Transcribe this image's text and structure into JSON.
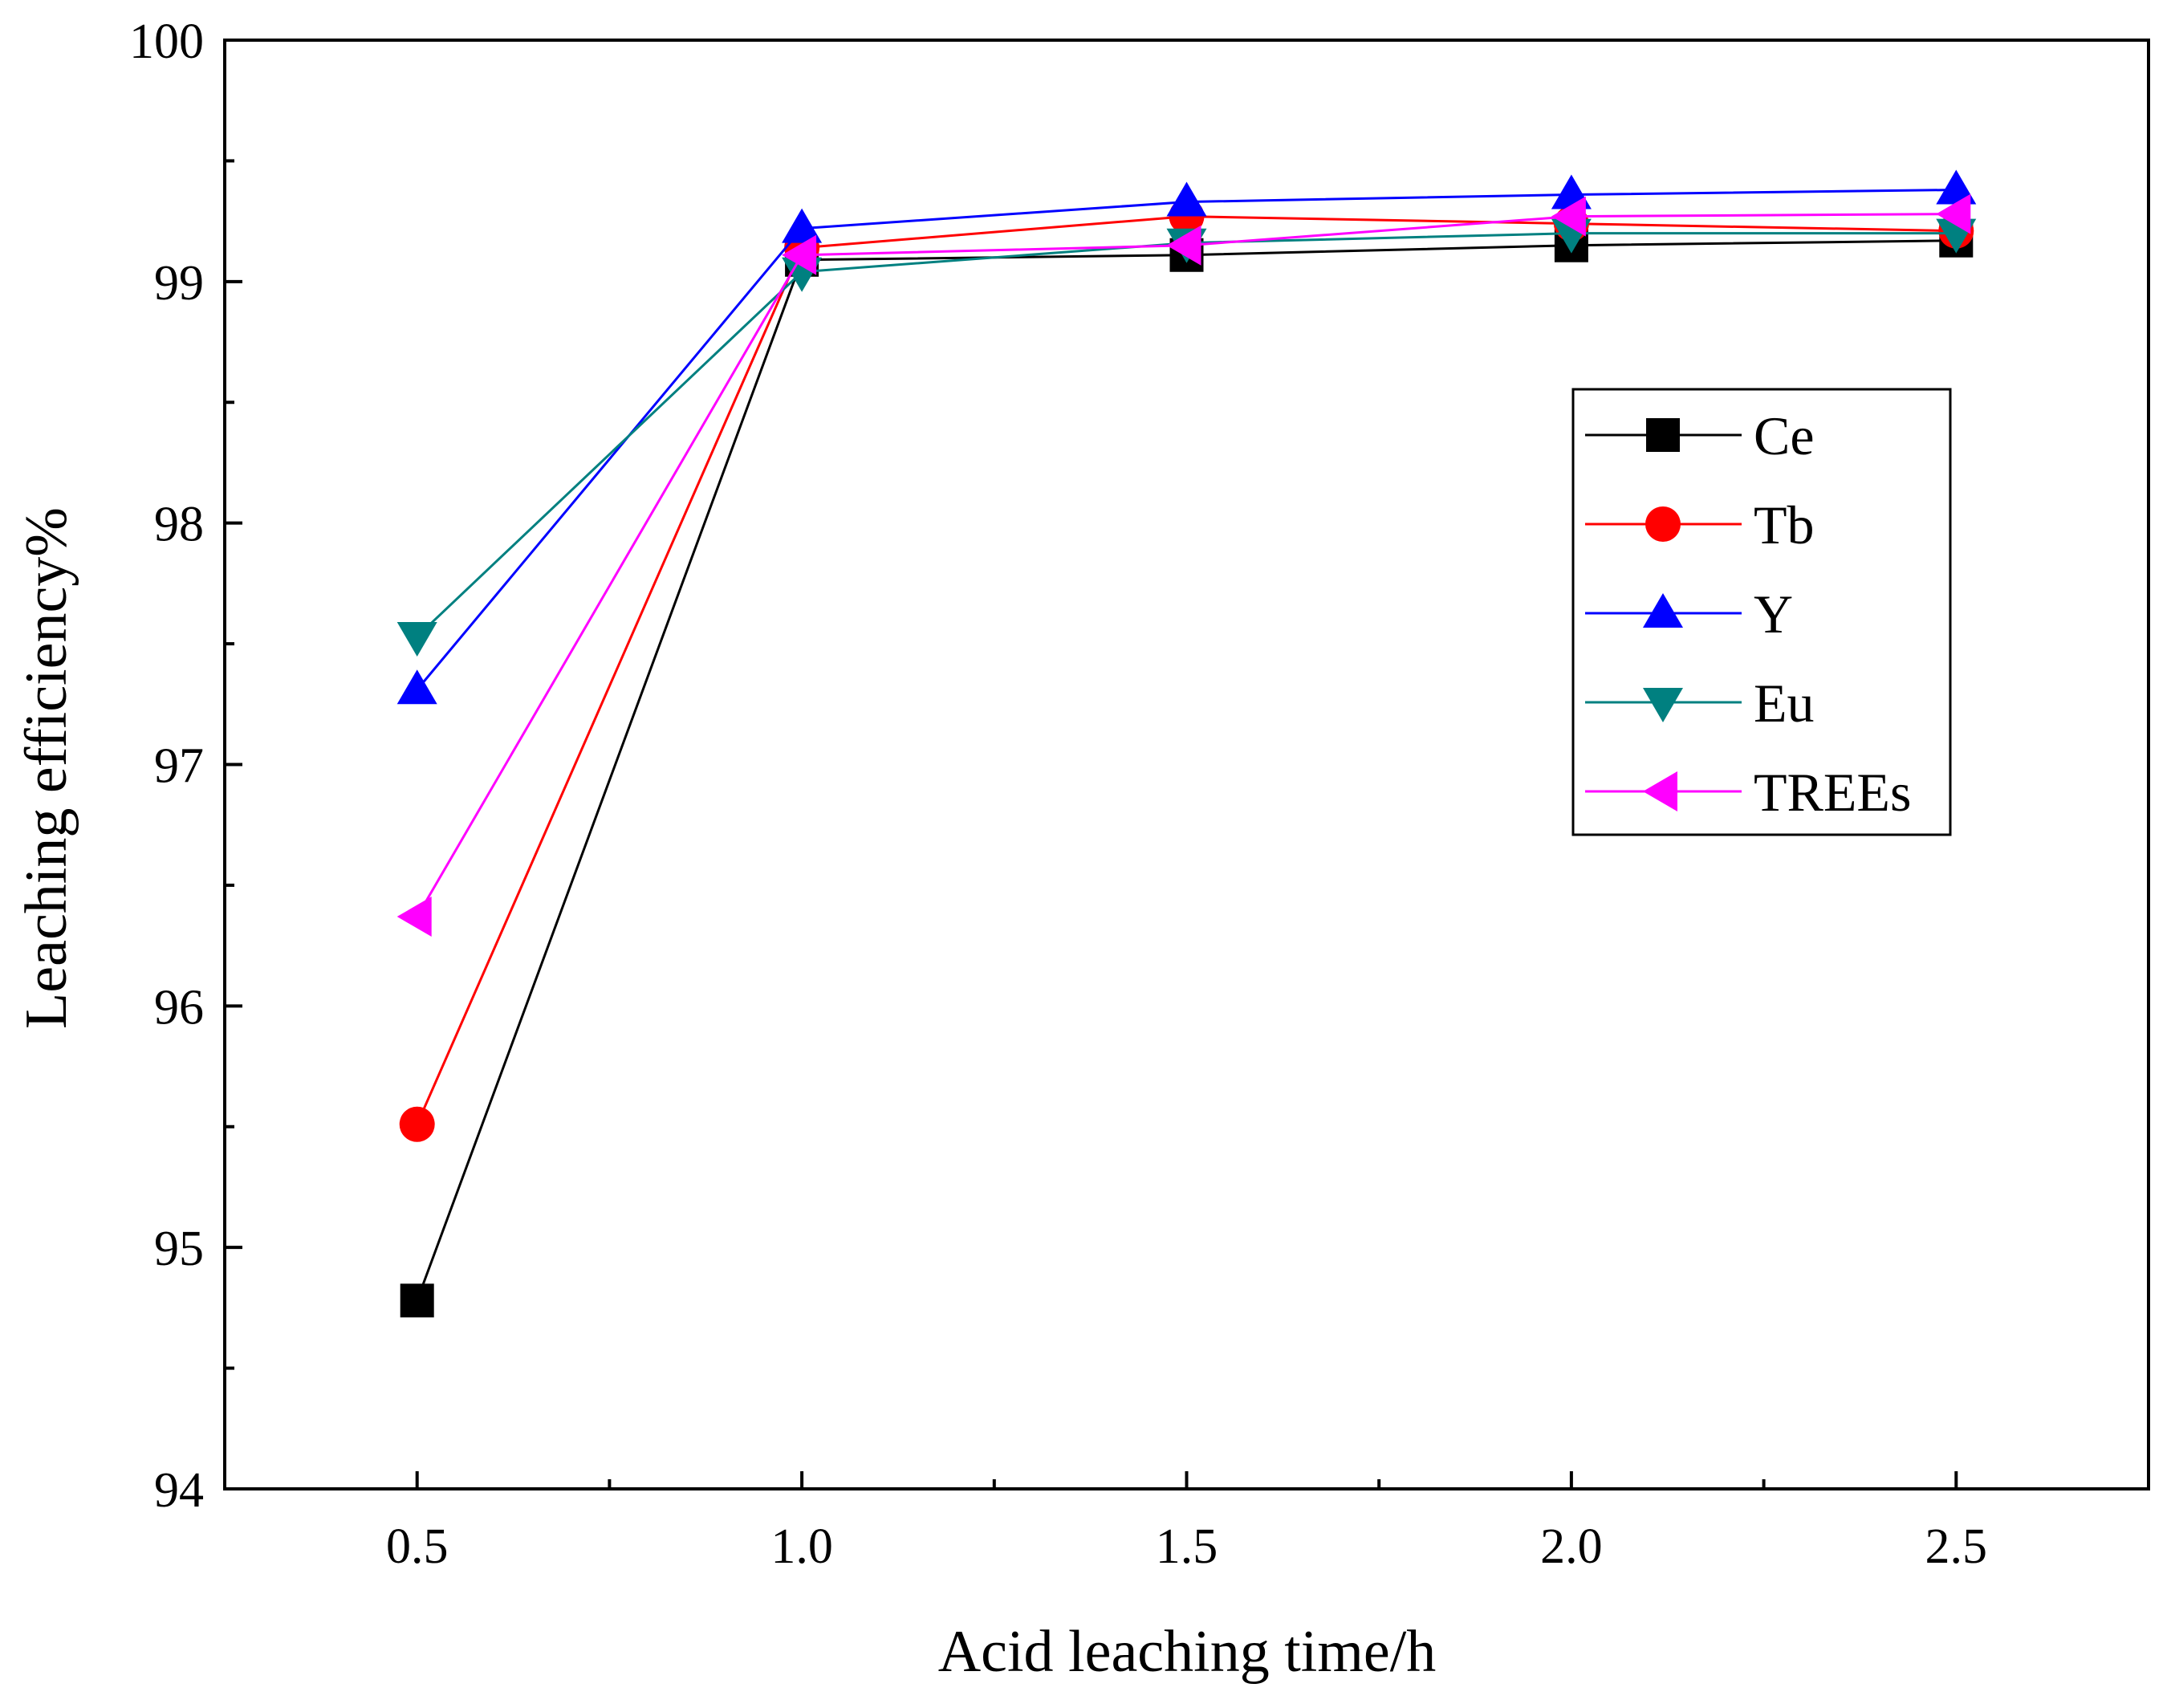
{
  "chart_data": {
    "type": "line",
    "xlabel": "Acid leaching time/h",
    "ylabel": "Leaching efficiency%",
    "xlim": [
      0.25,
      2.75
    ],
    "ylim": [
      94,
      100
    ],
    "x": [
      0.5,
      1.0,
      1.5,
      2.0,
      2.5
    ],
    "x_ticks": [
      0.5,
      1.0,
      1.5,
      2.0,
      2.5
    ],
    "x_tick_labels": [
      "0.5",
      "1.0",
      "1.5",
      "2.0",
      "2.5"
    ],
    "y_ticks": [
      94,
      95,
      96,
      97,
      98,
      99,
      100
    ],
    "y_tick_labels": [
      "94",
      "95",
      "96",
      "97",
      "98",
      "99",
      "100"
    ],
    "grid": false,
    "legend_position": "right",
    "series": [
      {
        "name": "Ce",
        "color": "#000000",
        "marker": "square",
        "values": [
          94.78,
          99.09,
          99.11,
          99.15,
          99.17
        ]
      },
      {
        "name": "Tb",
        "color": "#ff0000",
        "marker": "circle",
        "values": [
          95.51,
          99.14,
          99.27,
          99.24,
          99.21
        ]
      },
      {
        "name": "Y",
        "color": "#0000ff",
        "marker": "triangle-up",
        "values": [
          97.31,
          99.22,
          99.33,
          99.36,
          99.38
        ]
      },
      {
        "name": "Eu",
        "color": "#008080",
        "marker": "triangle-down",
        "values": [
          97.53,
          99.04,
          99.16,
          99.2,
          99.2
        ]
      },
      {
        "name": "TREEs",
        "color": "#ff00ff",
        "marker": "triangle-left",
        "values": [
          96.37,
          99.11,
          99.15,
          99.27,
          99.28
        ]
      }
    ]
  }
}
